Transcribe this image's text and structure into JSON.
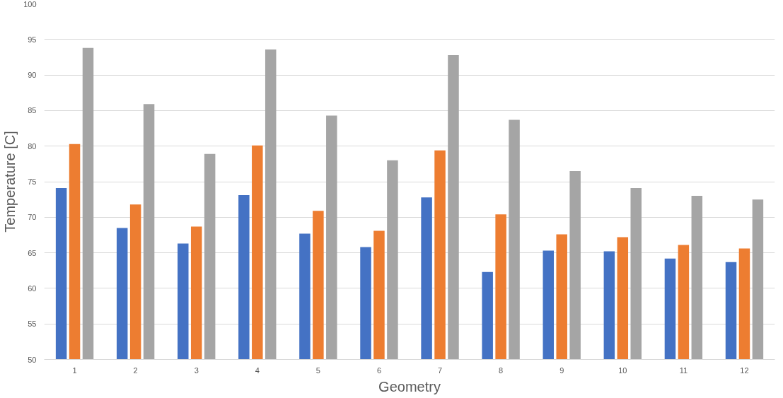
{
  "chart_data": {
    "type": "bar",
    "xlabel": "Geometry",
    "ylabel": "Temperature [C]",
    "categories": [
      "1",
      "2",
      "3",
      "4",
      "5",
      "6",
      "7",
      "8",
      "9",
      "10",
      "11",
      "12"
    ],
    "series": [
      {
        "color": "#4472c4",
        "values": [
          74.1,
          68.5,
          66.3,
          73.1,
          67.7,
          65.8,
          72.8,
          62.3,
          65.3,
          65.2,
          64.2,
          63.7
        ]
      },
      {
        "color": "#ed7d31",
        "values": [
          80.3,
          71.8,
          68.7,
          80.1,
          70.9,
          68.1,
          79.4,
          70.4,
          67.6,
          67.2,
          66.1,
          65.6
        ]
      },
      {
        "color": "#a5a5a5",
        "values": [
          93.8,
          85.9,
          78.9,
          93.6,
          84.3,
          78.0,
          92.8,
          83.7,
          76.5,
          74.1,
          73.0,
          72.5
        ]
      }
    ],
    "ylim": [
      50,
      100
    ],
    "yticks": [
      50,
      55,
      60,
      65,
      70,
      75,
      80,
      85,
      90,
      95,
      100
    ],
    "grid": "y"
  }
}
